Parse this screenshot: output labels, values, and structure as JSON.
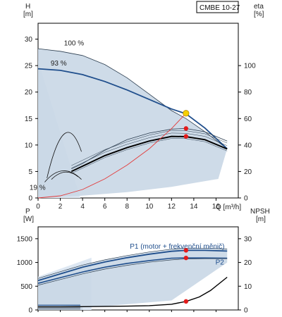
{
  "chart_data": [
    {
      "type": "line",
      "title": "",
      "model": "CMBE 10-27",
      "xlabel": "Q [m³/h]",
      "ylabel_left": "H\n[m]",
      "ylabel_right": "eta\n[%]",
      "xlim": [
        0,
        18
      ],
      "ylim_left": [
        0,
        33
      ],
      "ylim_right": [
        0,
        132
      ],
      "x_ticks": [
        0,
        2,
        4,
        6,
        8,
        10,
        12,
        14,
        16
      ],
      "x_tick_labels": [
        "0",
        "2",
        "4",
        "6",
        "8",
        "10",
        "12",
        "14",
        "16"
      ],
      "x_unit_label": "Q [m³/h]",
      "y_left_ticks": [
        0,
        5,
        10,
        15,
        20,
        25,
        30
      ],
      "y_left_tick_labels": [
        "0",
        "5",
        "10",
        "15",
        "20",
        "25",
        "30"
      ],
      "y_right_ticks": [
        0,
        20,
        40,
        60,
        80,
        100
      ],
      "y_right_tick_labels": [
        "0",
        "20",
        "40",
        "60",
        "80",
        "100"
      ],
      "curve_labels": [
        {
          "text": "100 %",
          "x": 3.6,
          "y": 28.8
        },
        {
          "text": "93 %",
          "x": 2.4,
          "y": 25.0
        },
        {
          "text": "19 %",
          "x": 0.5,
          "y": 1.5
        }
      ],
      "series": [
        {
          "name": "H 100%",
          "x": [
            0,
            2,
            4,
            6,
            8,
            10,
            12,
            13.3,
            15,
            17
          ],
          "y": [
            28.2,
            27.7,
            26.9,
            25.2,
            22.7,
            19.6,
            16.5,
            15.0,
            12.5,
            9.3
          ]
        },
        {
          "name": "H 93%",
          "x": [
            0,
            2,
            4,
            6,
            8,
            10,
            12,
            13.3,
            15,
            17
          ],
          "y": [
            24.4,
            24.1,
            23.3,
            22.0,
            20.4,
            18.6,
            16.8,
            15.9,
            13.2,
            9.3
          ]
        },
        {
          "name": "eta",
          "x": [
            3,
            4,
            6,
            8,
            10,
            12,
            13.3,
            15,
            17
          ],
          "y": [
            20,
            24,
            32,
            38,
            43,
            46.5,
            46.3,
            44,
            37
          ]
        },
        {
          "name": "eta upper",
          "x": [
            3,
            4,
            6,
            8,
            10,
            12,
            13.3,
            15,
            17
          ],
          "y": [
            22,
            26,
            36,
            44,
            49,
            52,
            52.5,
            50,
            43
          ]
        },
        {
          "name": "system curve",
          "x": [
            0,
            2,
            4,
            6,
            8,
            10,
            12,
            13.3
          ],
          "y": [
            0,
            0.4,
            1.6,
            3.6,
            6.2,
            9.3,
            13.1,
            16.0
          ]
        }
      ],
      "duty_point": {
        "x": 13.3,
        "y": 16.0
      },
      "eta_points": [
        {
          "x": 13.3,
          "y": 46.5
        },
        {
          "x": 13.3,
          "y": 52.5
        }
      ]
    },
    {
      "type": "line",
      "title": "",
      "xlabel": "",
      "ylabel_left": "P\n[W]",
      "ylabel_right": "NPSH\n[m]",
      "xlim": [
        0,
        18
      ],
      "ylim_left": [
        0,
        1750
      ],
      "ylim_right": [
        0,
        35
      ],
      "y_left_ticks": [
        0,
        500,
        1000,
        1500
      ],
      "y_left_tick_labels": [
        "0",
        "500",
        "1000",
        "1500"
      ],
      "y_right_ticks": [
        0,
        10,
        20,
        30
      ],
      "y_right_tick_labels": [
        "0",
        "10",
        "20",
        "30"
      ],
      "curve_labels": [
        {
          "text": "P1 (motor + frekvenční měnič)",
          "x": 8.0,
          "y": 1290
        },
        {
          "text": "P2",
          "x": 16.2,
          "y": 960
        }
      ],
      "series": [
        {
          "name": "P1",
          "x": [
            0,
            2,
            4,
            6,
            8,
            10,
            12,
            13.3,
            15,
            17
          ],
          "y": [
            620,
            760,
            900,
            1010,
            1100,
            1175,
            1235,
            1255,
            1255,
            1240
          ]
        },
        {
          "name": "P2",
          "x": [
            0,
            2,
            4,
            6,
            8,
            10,
            12,
            13.3,
            15,
            17
          ],
          "y": [
            560,
            680,
            800,
            900,
            980,
            1040,
            1090,
            1095,
            1095,
            1090
          ]
        },
        {
          "name": "P low",
          "x": [
            0,
            2,
            4,
            6,
            8,
            10,
            12,
            13.3,
            15,
            17
          ],
          "y": [
            520,
            640,
            760,
            860,
            940,
            1005,
            1055,
            1075,
            1080,
            1080
          ]
        },
        {
          "name": "NPSH",
          "x": [
            0,
            2,
            4,
            6,
            8,
            10,
            12,
            13.3,
            14.5,
            15.5,
            17
          ],
          "y": [
            1.3,
            1.3,
            1.4,
            1.5,
            1.6,
            1.8,
            2.4,
            3.6,
            5.5,
            8.2,
            13.8
          ]
        }
      ],
      "p1_point": {
        "x": 13.3,
        "y": 1255
      },
      "p2_point": {
        "x": 13.3,
        "y": 1095
      },
      "npsh_point": {
        "x": 13.3,
        "y": 3.6
      }
    }
  ],
  "colors": {
    "envelope": "#c9d7e6",
    "envelope_light": "#dde7f2",
    "curve_blue": "#1f4e8c",
    "curve_thin": "#2c3e50",
    "system_red": "#e33b3b",
    "duty_yellow": "#f6d000",
    "point_red": "#e31b1b"
  }
}
